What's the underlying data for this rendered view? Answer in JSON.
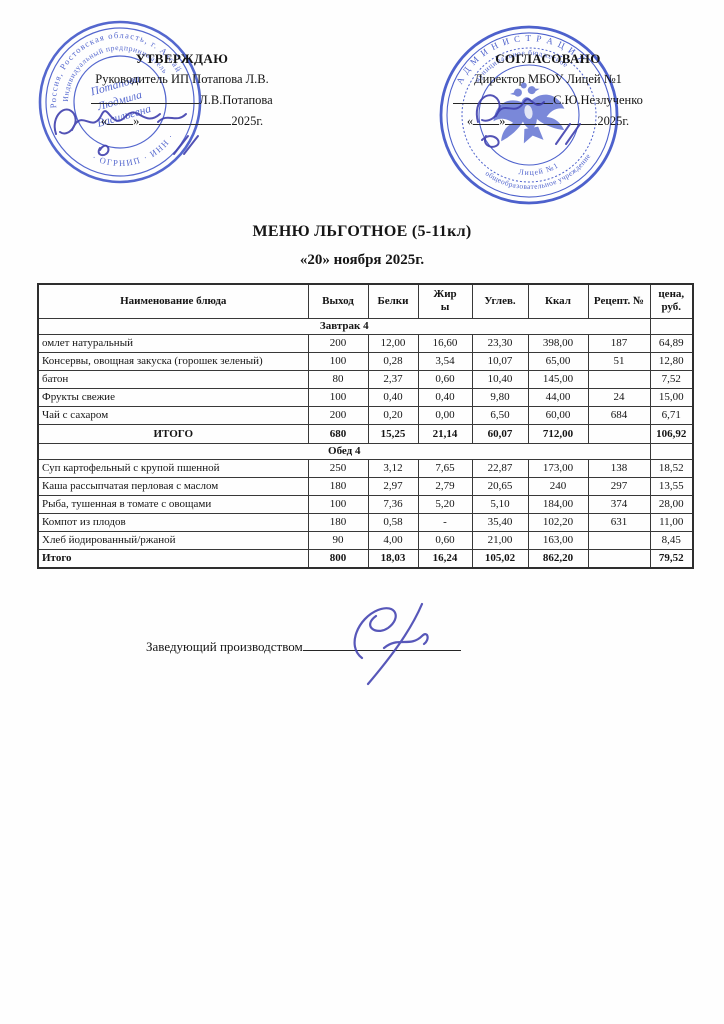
{
  "document": {
    "title": "МЕНЮ ЛЬГОТНОЕ (5-11кл)",
    "date_line": "«20» ноября 2025г."
  },
  "approvals": {
    "left": {
      "heading": "УТВЕРЖДАЮ",
      "role_line": "Руководитель ИП Потапова Л.В.",
      "signer": "Л.В.Потапова",
      "quote_open": "«",
      "quote_close": "»",
      "year": "2025г."
    },
    "right": {
      "heading": "СОГЛАСОВАНО",
      "role_line": "Директор МБОУ Лицей №1",
      "signer": "С.Ю.Незлученко",
      "quote_open": "«",
      "quote_close": "»",
      "year": "2025г."
    }
  },
  "stamps": {
    "left": {
      "ring_top": "Россия, Ростовская область, г. Аксай",
      "ring_middle": "Индивидуальный предприниматель",
      "ring_bottom": "· ОГРНИП · ИНН ·",
      "center_line1": "Потапова",
      "center_line2": "Людмила",
      "center_line3": "Васильевна"
    },
    "right": {
      "ring_top": "А Д М И Н И С Т Р А Ц И Я",
      "ring_middle_top": "муниципальное бюджетное",
      "ring_middle_bottom": "общеобразовательное учреждение",
      "ring_bottom": "Лицей №1"
    }
  },
  "table": {
    "headers": [
      "Наименование блюда",
      "Выход",
      "Белки",
      "Жиры",
      "Углев.",
      "Ккал",
      "Рецепт. №",
      "цена, руб."
    ],
    "sections": [
      {
        "name": "Завтрак 4",
        "rows": [
          [
            "омлет натуральный",
            "200",
            "12,00",
            "16,60",
            "23,30",
            "398,00",
            "187",
            "64,89"
          ],
          [
            "Консервы, овощная закуска (горошек зеленый)",
            "100",
            "0,28",
            "3,54",
            "10,07",
            "65,00",
            "51",
            "12,80"
          ],
          [
            "батон",
            "80",
            "2,37",
            "0,60",
            "10,40",
            "145,00",
            "",
            "7,52"
          ],
          [
            "Фрукты свежие",
            "100",
            "0,40",
            "0,40",
            "9,80",
            "44,00",
            "24",
            "15,00"
          ],
          [
            "Чай с сахаром",
            "200",
            "0,20",
            "0,00",
            "6,50",
            "60,00",
            "684",
            "6,71"
          ]
        ],
        "total": [
          "ИТОГО",
          "680",
          "15,25",
          "21,14",
          "60,07",
          "712,00",
          "",
          "106,92"
        ],
        "total_align": "center"
      },
      {
        "name": "Обед 4",
        "rows": [
          [
            "Суп картофельный  с крупой пшенной",
            "250",
            "3,12",
            "7,65",
            "22,87",
            "173,00",
            "138",
            "18,52"
          ],
          [
            "Каша рассыпчатая перловая с маслом",
            "180",
            "2,97",
            "2,79",
            "20,65",
            "240",
            "297",
            "13,55"
          ],
          [
            "Рыба, тушенная в томате с овощами",
            "100",
            "7,36",
            "5,20",
            "5,10",
            "184,00",
            "374",
            "28,00"
          ],
          [
            "Компот из плодов",
            "180",
            "0,58",
            "-",
            "35,40",
            "102,20",
            "631",
            "11,00"
          ],
          [
            "Хлеб йодированный/ржаной",
            "90",
            "4,00",
            "0,60",
            "21,00",
            "163,00",
            "",
            "8,45"
          ]
        ],
        "total": [
          "Итого",
          "800",
          "18,03",
          "16,24",
          "105,02",
          "862,20",
          "",
          "79,52"
        ],
        "total_align": "left"
      }
    ]
  },
  "footer": {
    "label": "Заведующий производством"
  }
}
